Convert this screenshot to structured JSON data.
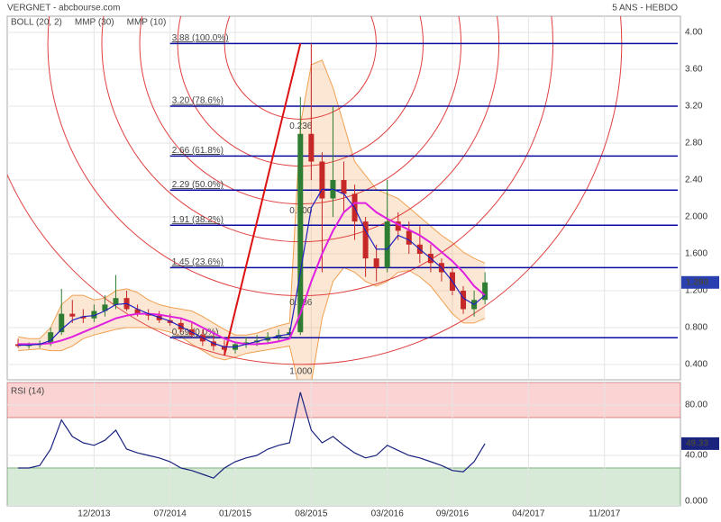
{
  "chart_data": {
    "type": "candlestick",
    "title": "VERGNET - abcbourse.com",
    "subtitle": "5 ANS - HEBDO",
    "x": [
      "2013-05",
      "2013-06",
      "2013-07",
      "2013-08",
      "2013-09",
      "2013-10",
      "2013-11",
      "2013-12",
      "2014-01",
      "2014-02",
      "2014-03",
      "2014-04",
      "2014-05",
      "2014-06",
      "2014-07",
      "2014-08",
      "2014-09",
      "2014-10",
      "2014-11",
      "2014-12",
      "2015-01",
      "2015-02",
      "2015-03",
      "2015-04",
      "2015-05",
      "2015-06",
      "2015-07",
      "2015-08",
      "2015-09",
      "2015-10",
      "2015-11",
      "2015-12",
      "2016-01",
      "2016-02",
      "2016-03",
      "2016-04",
      "2016-05",
      "2016-06",
      "2016-07",
      "2016-08",
      "2016-09",
      "2016-10",
      "2016-11",
      "2016-12"
    ],
    "open": [
      0.62,
      0.6,
      0.61,
      0.63,
      0.75,
      0.95,
      0.92,
      0.9,
      0.98,
      1.05,
      1.12,
      1.0,
      0.95,
      0.93,
      0.88,
      0.85,
      0.78,
      0.72,
      0.65,
      0.6,
      0.56,
      0.62,
      0.64,
      0.66,
      0.7,
      0.72,
      0.75,
      2.9,
      2.6,
      2.2,
      2.4,
      2.25,
      1.95,
      1.55,
      1.45,
      1.95,
      1.85,
      1.7,
      1.6,
      1.5,
      1.4,
      1.2,
      1.0,
      1.1
    ],
    "high": [
      0.68,
      0.64,
      0.66,
      0.8,
      1.22,
      1.1,
      1.0,
      1.05,
      1.15,
      1.37,
      1.2,
      1.05,
      1.0,
      0.98,
      0.95,
      0.9,
      0.85,
      0.78,
      0.72,
      0.66,
      0.65,
      0.7,
      0.72,
      0.75,
      0.78,
      0.8,
      3.3,
      3.88,
      2.7,
      3.2,
      2.6,
      2.35,
      2.0,
      1.7,
      2.4,
      2.05,
      1.95,
      1.9,
      1.7,
      1.55,
      1.45,
      1.25,
      1.2,
      1.4
    ],
    "low": [
      0.58,
      0.57,
      0.58,
      0.6,
      0.72,
      0.85,
      0.85,
      0.86,
      0.92,
      1.0,
      0.98,
      0.92,
      0.88,
      0.85,
      0.82,
      0.75,
      0.7,
      0.6,
      0.55,
      0.5,
      0.52,
      0.58,
      0.6,
      0.62,
      0.65,
      0.68,
      0.72,
      2.4,
      1.4,
      2.0,
      2.05,
      1.75,
      1.35,
      1.3,
      1.4,
      1.75,
      1.6,
      1.5,
      1.4,
      1.3,
      1.15,
      0.95,
      0.92,
      1.05
    ],
    "close": [
      0.6,
      0.61,
      0.63,
      0.75,
      0.95,
      0.92,
      0.9,
      0.98,
      1.05,
      1.12,
      1.0,
      0.95,
      0.93,
      0.88,
      0.85,
      0.78,
      0.72,
      0.65,
      0.6,
      0.56,
      0.62,
      0.64,
      0.66,
      0.7,
      0.72,
      0.75,
      2.9,
      2.6,
      2.2,
      2.4,
      2.25,
      1.95,
      1.55,
      1.45,
      1.95,
      1.85,
      1.7,
      1.6,
      1.5,
      1.4,
      1.2,
      1.0,
      1.1,
      1.29
    ],
    "last_label": "1.290",
    "up_color": "#2e7d32",
    "down_color": "#c62828",
    "series": [
      {
        "name": "BOLL (20, 2)",
        "color": "#f0a050",
        "upper": [
          0.7,
          0.68,
          0.68,
          0.8,
          1.05,
          1.15,
          1.15,
          1.1,
          1.12,
          1.2,
          1.22,
          1.18,
          1.1,
          1.05,
          1.02,
          1.0,
          0.98,
          0.92,
          0.85,
          0.78,
          0.72,
          0.72,
          0.74,
          0.78,
          0.82,
          0.85,
          3.0,
          3.65,
          3.7,
          3.4,
          3.0,
          2.6,
          2.45,
          2.3,
          2.25,
          2.2,
          2.1,
          2.0,
          1.9,
          1.8,
          1.72,
          1.62,
          1.55,
          1.5
        ],
        "lower": [
          0.55,
          0.56,
          0.57,
          0.55,
          0.55,
          0.6,
          0.68,
          0.72,
          0.75,
          0.78,
          0.8,
          0.8,
          0.8,
          0.78,
          0.75,
          0.7,
          0.62,
          0.55,
          0.48,
          0.45,
          0.48,
          0.52,
          0.54,
          0.56,
          0.58,
          0.6,
          0.1,
          0.2,
          0.9,
          1.3,
          1.45,
          1.4,
          1.3,
          1.25,
          1.3,
          1.4,
          1.42,
          1.35,
          1.25,
          1.1,
          0.95,
          0.85,
          0.85,
          0.9
        ]
      },
      {
        "name": "MMP (30)",
        "color": "#e020e0",
        "values": [
          0.62,
          0.62,
          0.62,
          0.63,
          0.66,
          0.7,
          0.75,
          0.8,
          0.85,
          0.9,
          0.93,
          0.95,
          0.95,
          0.94,
          0.92,
          0.9,
          0.86,
          0.8,
          0.74,
          0.68,
          0.64,
          0.62,
          0.62,
          0.63,
          0.65,
          0.68,
          0.95,
          1.3,
          1.6,
          1.85,
          2.05,
          2.15,
          2.15,
          2.05,
          1.98,
          1.92,
          1.86,
          1.8,
          1.72,
          1.62,
          1.52,
          1.4,
          1.25,
          1.15
        ]
      },
      {
        "name": "MMP (10)",
        "color": "#2020c0",
        "values": [
          0.61,
          0.61,
          0.62,
          0.66,
          0.78,
          0.88,
          0.92,
          0.93,
          0.98,
          1.05,
          1.06,
          1.0,
          0.95,
          0.91,
          0.87,
          0.81,
          0.75,
          0.69,
          0.63,
          0.59,
          0.59,
          0.62,
          0.65,
          0.68,
          0.71,
          0.73,
          1.4,
          2.1,
          2.3,
          2.3,
          2.25,
          2.1,
          1.85,
          1.65,
          1.65,
          1.8,
          1.75,
          1.65,
          1.55,
          1.45,
          1.3,
          1.12,
          1.05,
          1.15
        ]
      }
    ],
    "xlim": [
      "2013-04",
      "2018-06"
    ],
    "xticks": [
      {
        "value": "2013-12",
        "label": "12/2013"
      },
      {
        "value": "2014-07",
        "label": "07/2014"
      },
      {
        "value": "2015-01",
        "label": "01/2015"
      },
      {
        "value": "2015-08",
        "label": "08/2015"
      },
      {
        "value": "2016-03",
        "label": "03/2016"
      },
      {
        "value": "2016-09",
        "label": "09/2016"
      },
      {
        "value": "2017-04",
        "label": "04/2017"
      },
      {
        "value": "2017-11",
        "label": "11/2017"
      }
    ],
    "ylim": [
      0.234,
      4.176
    ],
    "yticks": [
      {
        "value": 4,
        "label": "4.00"
      },
      {
        "value": 3.6,
        "label": "3.60"
      },
      {
        "value": 3.2,
        "label": "3.20"
      },
      {
        "value": 2.8,
        "label": "2.80"
      },
      {
        "value": 2.4,
        "label": "2.40"
      },
      {
        "value": 2,
        "label": "2.000"
      },
      {
        "value": 1.6,
        "label": "1.600"
      },
      {
        "value": 1.2,
        "label": "1.200"
      },
      {
        "value": 0.8,
        "label": "0.800"
      },
      {
        "value": 0.4,
        "label": "0.400"
      }
    ],
    "fibonacci": {
      "color": "#0a0aa0",
      "start": "2014-07",
      "levels": [
        {
          "value": 3.88,
          "label": "3.88  (100.0%)"
        },
        {
          "value": 3.2,
          "label": "3.20  (78.6%)"
        },
        {
          "value": 2.66,
          "label": "2.66  (61.8%)"
        },
        {
          "value": 2.29,
          "label": "2.29  (50.0%)"
        },
        {
          "value": 1.91,
          "label": "1.91  (38.2%)"
        },
        {
          "value": 1.45,
          "label": "1.45  (23.6%)"
        },
        {
          "value": 0.69,
          "label": "0.69  (0.0%)"
        }
      ]
    },
    "trend_line": {
      "color": "#dd1111",
      "from": {
        "x": "2014-12",
        "y": 0.5
      },
      "to": {
        "x": "2015-07",
        "y": 3.88
      }
    },
    "fib_arcs": [
      {
        "value": 0.236,
        "label": "0.236"
      },
      0.382,
      {
        "value": 0.5,
        "label": "0.500"
      },
      0.618,
      {
        "value": 0.786,
        "label": "0.786"
      },
      {
        "value": 1,
        "label": "1.000"
      }
    ],
    "rsi": {
      "type": "line",
      "name": "RSI (14)",
      "color": "#1a237e",
      "values": [
        30,
        30,
        32,
        45,
        68,
        55,
        50,
        48,
        52,
        60,
        45,
        42,
        40,
        38,
        35,
        30,
        28,
        25,
        22,
        30,
        35,
        38,
        40,
        45,
        48,
        50,
        90,
        60,
        50,
        55,
        48,
        42,
        38,
        40,
        48,
        44,
        40,
        38,
        35,
        32,
        28,
        27,
        35,
        49.33
      ],
      "last_label": "49.33",
      "ylim": [
        0,
        97.8
      ],
      "yticks": [
        {
          "value": 80,
          "label": "80.00"
        },
        {
          "value": 40,
          "label": "40.00"
        },
        {
          "value": 0,
          "label": "0.000"
        }
      ],
      "overbought": 70,
      "oversold": 30
    }
  }
}
